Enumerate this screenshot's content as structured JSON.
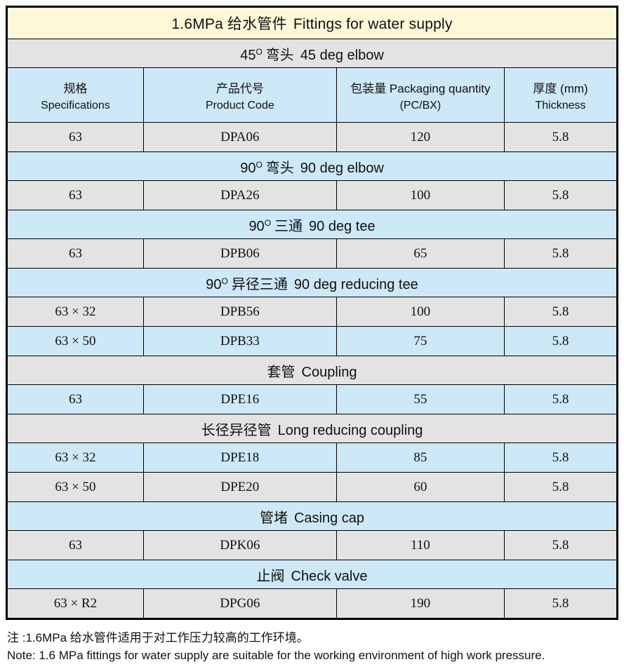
{
  "colors": {
    "page_bg": "#FFFFFF",
    "title_bg": "#FCF8D8",
    "section_blue": "#CDE8F6",
    "row_gray": "#E3E3E3",
    "border": "#000000",
    "text": "#111111"
  },
  "table": {
    "title_zh": "1.6MPa 给水管件",
    "title_en": "Fittings for water supply",
    "columns": [
      {
        "line1": "规格",
        "line2": "Specifications"
      },
      {
        "line1": "产品代号",
        "line2": "Product Code"
      },
      {
        "line1": "包装量 Packaging quantity",
        "line2": "(PC/BX)"
      },
      {
        "line1": "厚度 (mm)",
        "line2": "Thickness"
      }
    ],
    "sections": [
      {
        "deg": "45",
        "sup": "O",
        "zh": "弯头",
        "en": "45 deg elbow",
        "rows": [
          [
            "63",
            "DPA06",
            "120",
            "5.8"
          ]
        ]
      },
      {
        "deg": "90",
        "sup": "O",
        "zh": "弯头",
        "en": "90 deg elbow",
        "rows": [
          [
            "63",
            "DPA26",
            "100",
            "5.8"
          ]
        ]
      },
      {
        "deg": "90",
        "sup": "O",
        "zh": "三通",
        "en": "90 deg tee",
        "rows": [
          [
            "63",
            "DPB06",
            "65",
            "5.8"
          ]
        ]
      },
      {
        "deg": "90",
        "sup": "O",
        "zh": "异径三通",
        "en": "90 deg reducing tee",
        "rows": [
          [
            "63 × 32",
            "DPB56",
            "100",
            "5.8"
          ],
          [
            "63 × 50",
            "DPB33",
            "75",
            "5.8"
          ]
        ]
      },
      {
        "deg": "",
        "sup": "",
        "zh": "套管",
        "en": "Coupling",
        "rows": [
          [
            "63",
            "DPE16",
            "55",
            "5.8"
          ]
        ]
      },
      {
        "deg": "",
        "sup": "",
        "zh": "长径异径管",
        "en": "Long reducing coupling",
        "rows": [
          [
            "63 × 32",
            "DPE18",
            "85",
            "5.8"
          ],
          [
            "63 × 50",
            "DPE20",
            "60",
            "5.8"
          ]
        ]
      },
      {
        "deg": "",
        "sup": "",
        "zh": "管堵",
        "en": "Casing cap",
        "rows": [
          [
            "63",
            "DPK06",
            "110",
            "5.8"
          ]
        ]
      },
      {
        "deg": "",
        "sup": "",
        "zh": "止阀",
        "en": "Check valve",
        "rows": [
          [
            "63 × R2",
            "DPG06",
            "190",
            "5.8"
          ]
        ]
      }
    ]
  },
  "notes": {
    "line_zh": "注 :1.6MPa 给水管件适用于对工作压力较高的工作环境。",
    "line_en": "Note: 1.6 MPa fittings for water supply are suitable for the working environment of high work pressure."
  }
}
